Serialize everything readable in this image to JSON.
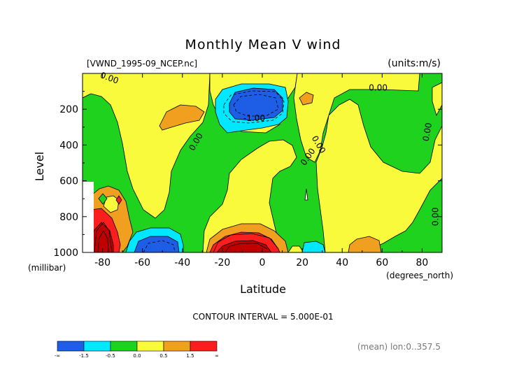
{
  "chart_data": {
    "type": "contour",
    "title": "Monthly Mean V wind",
    "file_label": "[VWND_1995-09_NCEP.nc]",
    "units_label": "(units:m/s)",
    "ylabel": "Level",
    "y_unit_label": "(millibar)",
    "xlabel": "Latitude",
    "x_unit_label": "(degrees_north)",
    "xlim": [
      -90,
      90
    ],
    "ylim": [
      1000,
      0
    ],
    "x_ticks": [
      "-80",
      "-60",
      "-40",
      "-20",
      "0",
      "20",
      "40",
      "60",
      "80"
    ],
    "x_tick_values": [
      -80,
      -60,
      -40,
      -20,
      0,
      20,
      40,
      60,
      80
    ],
    "y_ticks": [
      "200",
      "400",
      "600",
      "800",
      "1000"
    ],
    "y_tick_values": [
      200,
      400,
      600,
      800,
      1000
    ],
    "contour_interval_text": "CONTOUR INTERVAL = 5.000E-01",
    "mean_text": "(mean) lon:0..357.5",
    "contour_labels": [
      {
        "text": "0.00",
        "lat": -77,
        "lev": 40,
        "rot": 20
      },
      {
        "text": "0.00",
        "lat": 58,
        "lev": 95,
        "rot": 0
      },
      {
        "text": "-1.00",
        "lat": -4,
        "lev": 265,
        "rot": 0
      },
      {
        "text": "0.00",
        "lat": -32,
        "lev": 390,
        "rot": -60
      },
      {
        "text": "0.00",
        "lat": 24,
        "lev": 475,
        "rot": -55
      },
      {
        "text": "0.00",
        "lat": 27,
        "lev": 405,
        "rot": 60
      },
      {
        "text": "0.00",
        "lat": 84,
        "lev": 330,
        "rot": -80
      },
      {
        "text": "0.00",
        "lat": 88,
        "lev": 800,
        "rot": -90
      }
    ],
    "colorbar": {
      "tick_labels": [
        "-∞",
        "-1.5",
        "-0.5",
        "0.0",
        "0.5",
        "1.5",
        "∞"
      ],
      "colors": [
        "#1e5ee6",
        "#00e8ff",
        "#1ed21e",
        "#fafa3c",
        "#f0a01e",
        "#fa1e1e"
      ]
    },
    "colors": {
      "strong_negative": "#1e5ee6",
      "negative": "#00e8ff",
      "near_zero": "#1ed21e",
      "positive": "#fafa3c",
      "moderate_positive": "#f0a01e",
      "strong_positive": "#fa1e1e",
      "deep_positive": "#c00000"
    }
  }
}
